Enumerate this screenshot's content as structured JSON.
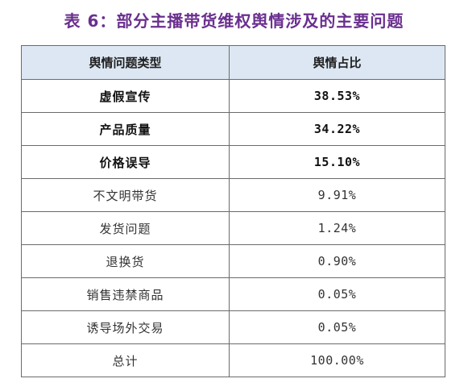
{
  "caption": "表 6：部分主播带货维权舆情涉及的主要问题",
  "table": {
    "headers": [
      "舆情问题类型",
      "舆情占比"
    ],
    "rows": [
      {
        "type": "虚假宣传",
        "share": "38.53%",
        "emphasis": true
      },
      {
        "type": "产品质量",
        "share": "34.22%",
        "emphasis": true
      },
      {
        "type": "价格误导",
        "share": "15.10%",
        "emphasis": true
      },
      {
        "type": "不文明带货",
        "share": "9.91%",
        "emphasis": false
      },
      {
        "type": "发货问题",
        "share": "1.24%",
        "emphasis": false
      },
      {
        "type": "退换货",
        "share": "0.90%",
        "emphasis": false
      },
      {
        "type": "销售违禁商品",
        "share": "0.05%",
        "emphasis": false
      },
      {
        "type": "诱导场外交易",
        "share": "0.05%",
        "emphasis": false
      },
      {
        "type": "总计",
        "share": "100.00%",
        "emphasis": false
      }
    ]
  },
  "colors": {
    "caption": "#6a2f8f",
    "header_bg": "#dde7f3",
    "border": "#6b6b6b"
  }
}
